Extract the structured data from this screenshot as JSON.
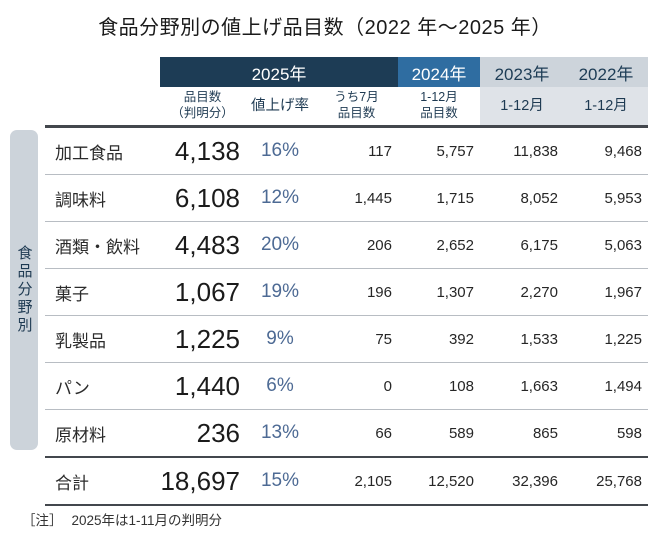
{
  "title": "食品分野別の値上げ品目数（2022 年～2025 年）",
  "note": {
    "prefix": "［注］",
    "text": "2025年は1-11月の判明分"
  },
  "colors": {
    "header_2025_bg": "#1d3c55",
    "header_2024_bg": "#2f6da1",
    "header_past_bg": "#cdd4db",
    "subheader_past_bg": "#dfe3e8",
    "group_bar_bg": "#ccd3da",
    "rate_text": "#4d6a94"
  },
  "table": {
    "group_label": "食品分野別",
    "year_headers": [
      {
        "label": "2025年"
      },
      {
        "label": "2024年"
      },
      {
        "label": "2023年"
      },
      {
        "label": "2022年"
      }
    ],
    "sub_headers": [
      {
        "l1": "品目数",
        "l2": "（判明分）"
      },
      {
        "l1": "値上げ率",
        "l2": ""
      },
      {
        "l1": "うち7月",
        "l2": "品目数"
      },
      {
        "l1": "1-12月",
        "l2": "品目数"
      },
      {
        "l1": "1-12月",
        "l2": ""
      },
      {
        "l1": "1-12月",
        "l2": ""
      }
    ],
    "rows": [
      {
        "category": "加工食品",
        "items": "4,138",
        "rate": "16%",
        "jul": "117",
        "y2024": "5,757",
        "y2023": "11,838",
        "y2022": "9,468"
      },
      {
        "category": "調味料",
        "items": "6,108",
        "rate": "12%",
        "jul": "1,445",
        "y2024": "1,715",
        "y2023": "8,052",
        "y2022": "5,953"
      },
      {
        "category": "酒類・飲料",
        "items": "4,483",
        "rate": "20%",
        "jul": "206",
        "y2024": "2,652",
        "y2023": "6,175",
        "y2022": "5,063"
      },
      {
        "category": "菓子",
        "items": "1,067",
        "rate": "19%",
        "jul": "196",
        "y2024": "1,307",
        "y2023": "2,270",
        "y2022": "1,967"
      },
      {
        "category": "乳製品",
        "items": "1,225",
        "rate": "9%",
        "jul": "75",
        "y2024": "392",
        "y2023": "1,533",
        "y2022": "1,225"
      },
      {
        "category": "パン",
        "items": "1,440",
        "rate": "6%",
        "jul": "0",
        "y2024": "108",
        "y2023": "1,663",
        "y2022": "1,494"
      },
      {
        "category": "原材料",
        "items": "236",
        "rate": "13%",
        "jul": "66",
        "y2024": "589",
        "y2023": "865",
        "y2022": "598"
      }
    ],
    "total": {
      "category": "合計",
      "items": "18,697",
      "rate": "15%",
      "jul": "2,105",
      "y2024": "12,520",
      "y2023": "32,396",
      "y2022": "25,768"
    }
  },
  "chart_data": {
    "type": "table",
    "title": "食品分野別の値上げ品目数（2022年～2025年）",
    "row_group": "食品分野別",
    "columns": [
      "2025年 品目数（判明分）",
      "2025年 値上げ率",
      "2025年 うち7月品目数",
      "2024年 1-12月品目数",
      "2023年 1-12月",
      "2022年 1-12月"
    ],
    "rows": [
      {
        "category": "加工食品",
        "values": [
          4138,
          "16%",
          117,
          5757,
          11838,
          9468
        ]
      },
      {
        "category": "調味料",
        "values": [
          6108,
          "12%",
          1445,
          1715,
          8052,
          5953
        ]
      },
      {
        "category": "酒類・飲料",
        "values": [
          4483,
          "20%",
          206,
          2652,
          6175,
          5063
        ]
      },
      {
        "category": "菓子",
        "values": [
          1067,
          "19%",
          196,
          1307,
          2270,
          1967
        ]
      },
      {
        "category": "乳製品",
        "values": [
          1225,
          "9%",
          75,
          392,
          1533,
          1225
        ]
      },
      {
        "category": "パン",
        "values": [
          1440,
          "6%",
          0,
          108,
          1663,
          1494
        ]
      },
      {
        "category": "原材料",
        "values": [
          236,
          "13%",
          66,
          589,
          865,
          598
        ]
      },
      {
        "category": "合計",
        "values": [
          18697,
          "15%",
          2105,
          12520,
          32396,
          25768
        ]
      }
    ],
    "note": "2025年は1-11月の判明分"
  }
}
